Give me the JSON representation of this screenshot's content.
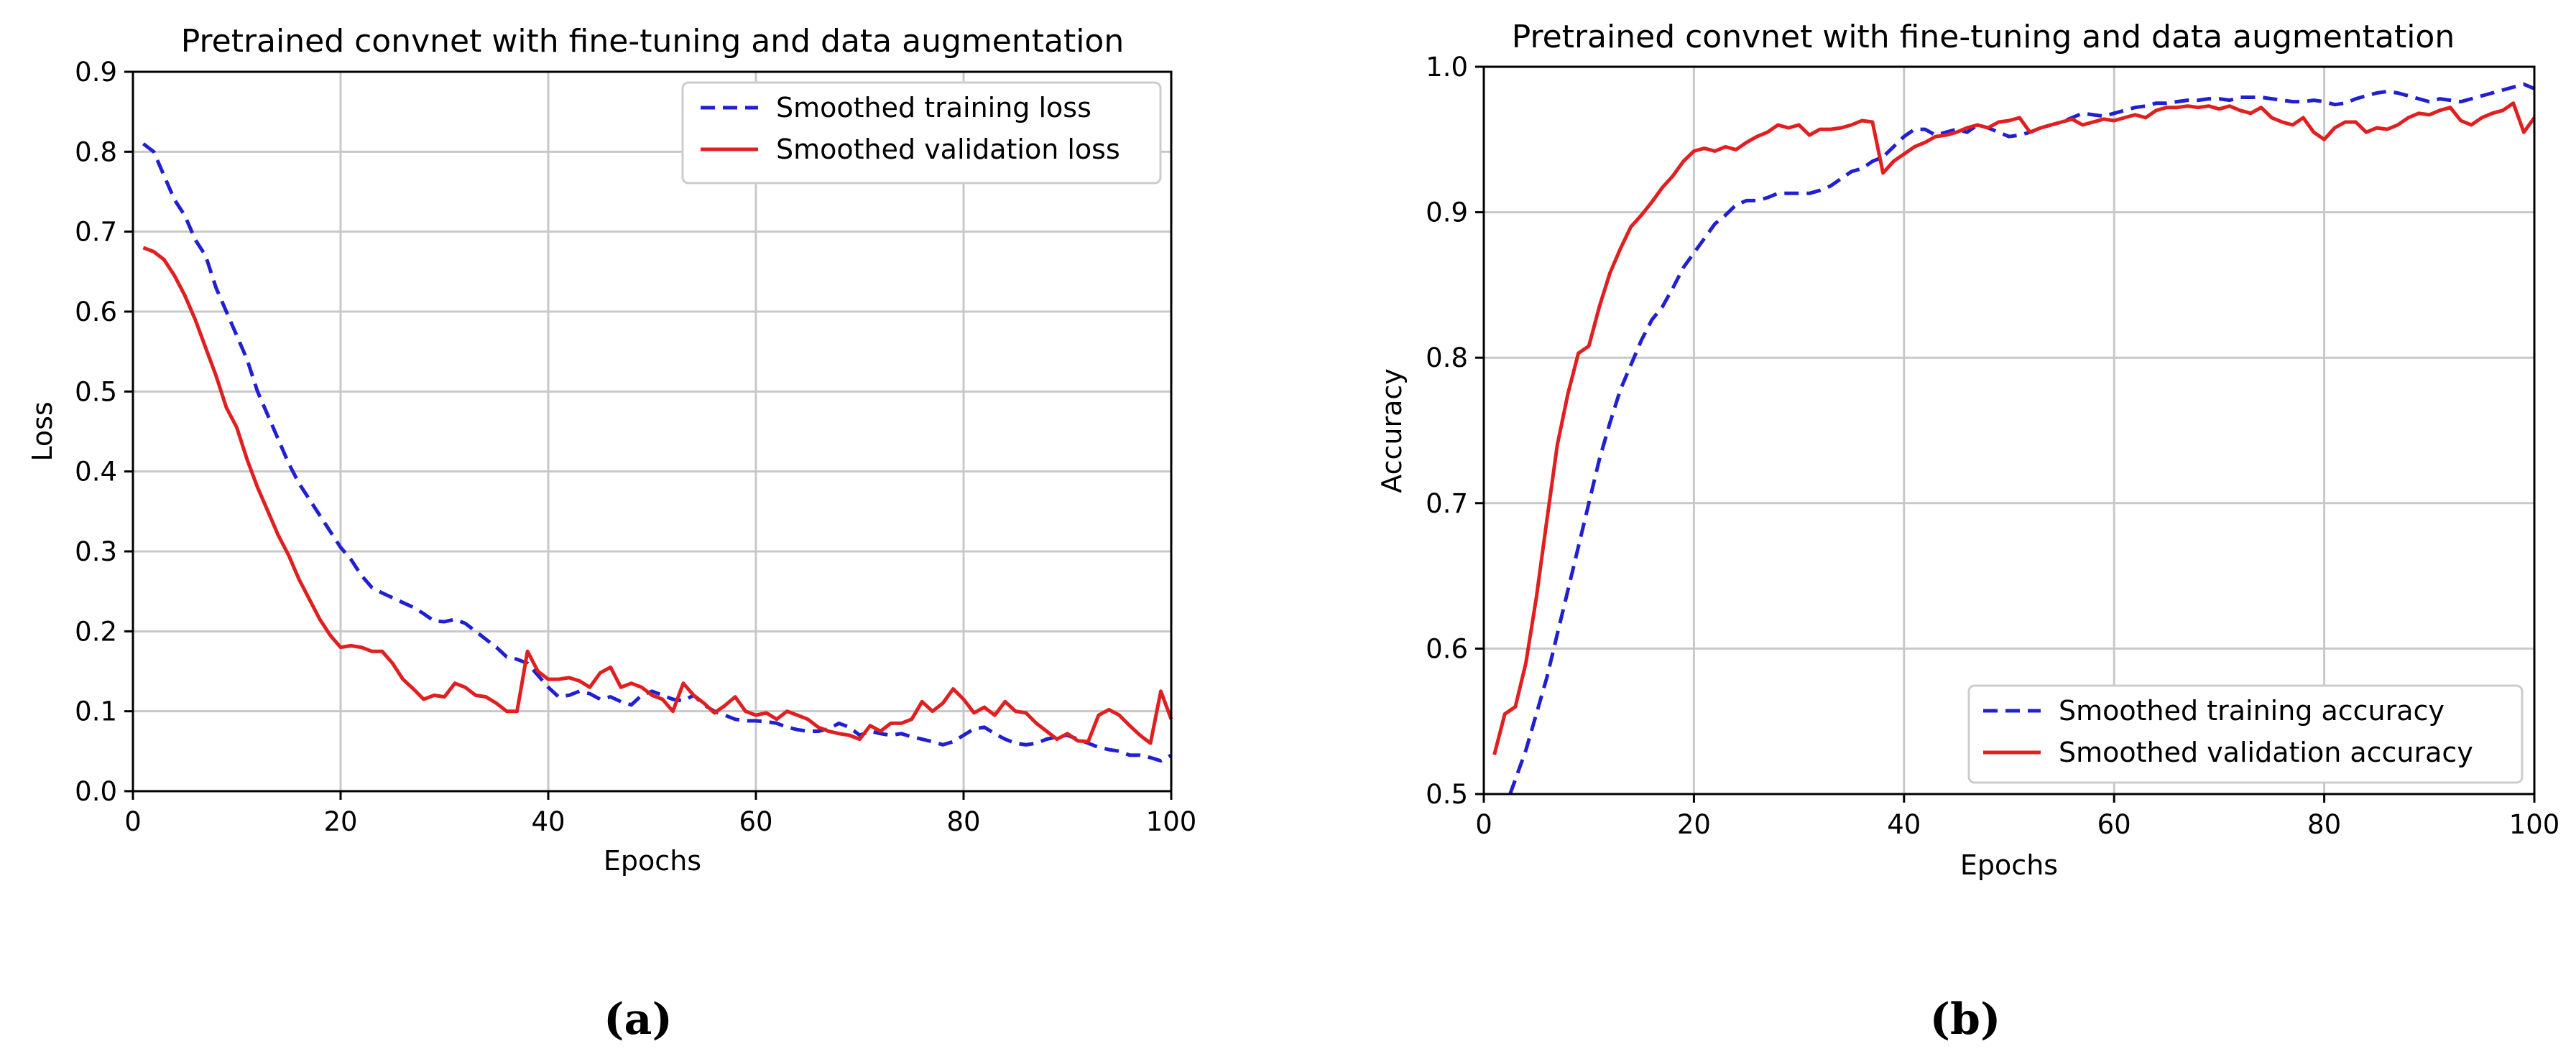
{
  "chart_data": [
    {
      "type": "line",
      "panel": "(a)",
      "title": "Pretrained convnet with fine-tuning and data augmentation",
      "xlabel": "Epochs",
      "ylabel": "Loss",
      "xlim": [
        0,
        100
      ],
      "ylim": [
        0,
        0.9
      ],
      "xticks": [
        0,
        20,
        40,
        60,
        80,
        100
      ],
      "yticks": [
        0.0,
        0.1,
        0.2,
        0.3,
        0.4,
        0.5,
        0.6,
        0.7,
        0.8,
        0.9
      ],
      "grid": true,
      "legend_position": "top-right",
      "series": [
        {
          "name": "Smoothed training loss",
          "color": "#2020d0",
          "style": "dashed",
          "x": [
            1,
            2,
            3,
            4,
            5,
            6,
            7,
            8,
            9,
            10,
            11,
            12,
            13,
            14,
            15,
            16,
            17,
            18,
            19,
            20,
            21,
            22,
            23,
            24,
            25,
            26,
            27,
            28,
            29,
            30,
            31,
            32,
            33,
            34,
            35,
            36,
            37,
            38,
            39,
            40,
            41,
            42,
            43,
            44,
            45,
            46,
            47,
            48,
            49,
            50,
            51,
            52,
            53,
            54,
            55,
            56,
            57,
            58,
            59,
            60,
            61,
            62,
            63,
            64,
            65,
            66,
            67,
            68,
            69,
            70,
            71,
            72,
            73,
            74,
            75,
            76,
            77,
            78,
            79,
            80,
            81,
            82,
            83,
            84,
            85,
            86,
            87,
            88,
            89,
            90,
            91,
            92,
            93,
            94,
            95,
            96,
            97,
            98,
            99,
            100
          ],
          "y": [
            0.81,
            0.8,
            0.77,
            0.74,
            0.72,
            0.69,
            0.67,
            0.63,
            0.6,
            0.57,
            0.54,
            0.5,
            0.47,
            0.44,
            0.41,
            0.385,
            0.365,
            0.345,
            0.325,
            0.305,
            0.29,
            0.27,
            0.255,
            0.248,
            0.242,
            0.236,
            0.23,
            0.222,
            0.213,
            0.212,
            0.215,
            0.21,
            0.2,
            0.19,
            0.18,
            0.168,
            0.165,
            0.16,
            0.145,
            0.13,
            0.118,
            0.12,
            0.125,
            0.122,
            0.115,
            0.118,
            0.112,
            0.108,
            0.12,
            0.125,
            0.12,
            0.115,
            0.113,
            0.12,
            0.108,
            0.1,
            0.095,
            0.09,
            0.088,
            0.088,
            0.087,
            0.085,
            0.08,
            0.077,
            0.075,
            0.075,
            0.078,
            0.085,
            0.08,
            0.07,
            0.075,
            0.072,
            0.07,
            0.072,
            0.068,
            0.065,
            0.062,
            0.058,
            0.062,
            0.07,
            0.078,
            0.08,
            0.072,
            0.065,
            0.06,
            0.058,
            0.06,
            0.065,
            0.068,
            0.07,
            0.065,
            0.06,
            0.055,
            0.052,
            0.05,
            0.045,
            0.045,
            0.042,
            0.038,
            0.045
          ]
        },
        {
          "name": "Smoothed validation loss",
          "color": "#e02020",
          "style": "solid",
          "x": [
            1,
            2,
            3,
            4,
            5,
            6,
            7,
            8,
            9,
            10,
            11,
            12,
            13,
            14,
            15,
            16,
            17,
            18,
            19,
            20,
            21,
            22,
            23,
            24,
            25,
            26,
            27,
            28,
            29,
            30,
            31,
            32,
            33,
            34,
            35,
            36,
            37,
            38,
            39,
            40,
            41,
            42,
            43,
            44,
            45,
            46,
            47,
            48,
            49,
            50,
            51,
            52,
            53,
            54,
            55,
            56,
            57,
            58,
            59,
            60,
            61,
            62,
            63,
            64,
            65,
            66,
            67,
            68,
            69,
            70,
            71,
            72,
            73,
            74,
            75,
            76,
            77,
            78,
            79,
            80,
            81,
            82,
            83,
            84,
            85,
            86,
            87,
            88,
            89,
            90,
            91,
            92,
            93,
            94,
            95,
            96,
            97,
            98,
            99,
            100
          ],
          "y": [
            0.68,
            0.675,
            0.665,
            0.645,
            0.62,
            0.59,
            0.555,
            0.52,
            0.48,
            0.455,
            0.415,
            0.38,
            0.35,
            0.32,
            0.295,
            0.265,
            0.24,
            0.215,
            0.195,
            0.18,
            0.182,
            0.18,
            0.175,
            0.175,
            0.16,
            0.14,
            0.128,
            0.115,
            0.12,
            0.118,
            0.135,
            0.13,
            0.12,
            0.118,
            0.11,
            0.1,
            0.1,
            0.175,
            0.15,
            0.14,
            0.14,
            0.142,
            0.138,
            0.13,
            0.148,
            0.155,
            0.13,
            0.135,
            0.13,
            0.12,
            0.115,
            0.1,
            0.135,
            0.12,
            0.11,
            0.098,
            0.107,
            0.118,
            0.1,
            0.095,
            0.098,
            0.09,
            0.1,
            0.095,
            0.09,
            0.08,
            0.075,
            0.072,
            0.07,
            0.065,
            0.082,
            0.075,
            0.085,
            0.085,
            0.09,
            0.112,
            0.1,
            0.11,
            0.128,
            0.115,
            0.098,
            0.105,
            0.095,
            0.112,
            0.1,
            0.098,
            0.085,
            0.075,
            0.065,
            0.072,
            0.063,
            0.062,
            0.095,
            0.102,
            0.095,
            0.082,
            0.07,
            0.06,
            0.125,
            0.09
          ]
        }
      ]
    },
    {
      "type": "line",
      "panel": "(b)",
      "title": "Pretrained convnet with fine-tuning and data augmentation",
      "xlabel": "Epochs",
      "ylabel": "Accuracy",
      "xlim": [
        0,
        100
      ],
      "ylim": [
        0.5,
        1.0
      ],
      "xticks": [
        0,
        20,
        40,
        60,
        80,
        100
      ],
      "yticks": [
        0.5,
        0.6,
        0.7,
        0.8,
        0.9,
        1.0
      ],
      "grid": true,
      "legend_position": "bottom-right",
      "series": [
        {
          "name": "Smoothed training accuracy",
          "color": "#2020d0",
          "style": "dashed",
          "x": [
            2.5,
            3,
            4,
            5,
            6,
            7,
            8,
            9,
            10,
            11,
            12,
            13,
            14,
            15,
            16,
            17,
            18,
            19,
            20,
            21,
            22,
            23,
            24,
            25,
            26,
            27,
            28,
            29,
            30,
            31,
            32,
            33,
            34,
            35,
            36,
            37,
            38,
            39,
            40,
            41,
            42,
            43,
            44,
            45,
            46,
            47,
            48,
            49,
            50,
            51,
            52,
            53,
            54,
            55,
            56,
            57,
            58,
            59,
            60,
            61,
            62,
            63,
            64,
            65,
            66,
            67,
            68,
            69,
            70,
            71,
            72,
            73,
            74,
            75,
            76,
            77,
            78,
            79,
            80,
            81,
            82,
            83,
            84,
            85,
            86,
            87,
            88,
            89,
            90,
            91,
            92,
            93,
            94,
            95,
            96,
            97,
            98,
            99,
            100
          ],
          "y": [
            0.5,
            0.51,
            0.53,
            0.555,
            0.58,
            0.61,
            0.64,
            0.67,
            0.7,
            0.73,
            0.755,
            0.778,
            0.795,
            0.812,
            0.826,
            0.835,
            0.848,
            0.862,
            0.872,
            0.882,
            0.892,
            0.898,
            0.905,
            0.908,
            0.908,
            0.91,
            0.913,
            0.913,
            0.913,
            0.913,
            0.915,
            0.918,
            0.923,
            0.928,
            0.93,
            0.935,
            0.938,
            0.945,
            0.952,
            0.957,
            0.957,
            0.953,
            0.955,
            0.957,
            0.955,
            0.96,
            0.958,
            0.955,
            0.952,
            0.953,
            0.955,
            0.958,
            0.96,
            0.962,
            0.965,
            0.968,
            0.967,
            0.966,
            0.968,
            0.97,
            0.972,
            0.973,
            0.975,
            0.975,
            0.976,
            0.977,
            0.977,
            0.978,
            0.978,
            0.977,
            0.979,
            0.979,
            0.979,
            0.978,
            0.977,
            0.976,
            0.976,
            0.977,
            0.976,
            0.974,
            0.975,
            0.978,
            0.98,
            0.982,
            0.983,
            0.982,
            0.98,
            0.978,
            0.976,
            0.978,
            0.977,
            0.976,
            0.978,
            0.98,
            0.982,
            0.984,
            0.986,
            0.988,
            0.985
          ]
        },
        {
          "name": "Smoothed validation accuracy",
          "color": "#e02020",
          "style": "solid",
          "x": [
            1,
            2,
            3,
            4,
            5,
            6,
            7,
            8,
            9,
            10,
            11,
            12,
            13,
            14,
            15,
            16,
            17,
            18,
            19,
            20,
            21,
            22,
            23,
            24,
            25,
            26,
            27,
            28,
            29,
            30,
            31,
            32,
            33,
            34,
            35,
            36,
            37,
            38,
            39,
            40,
            41,
            42,
            43,
            44,
            45,
            46,
            47,
            48,
            49,
            50,
            51,
            52,
            53,
            54,
            55,
            56,
            57,
            58,
            59,
            60,
            61,
            62,
            63,
            64,
            65,
            66,
            67,
            68,
            69,
            70,
            71,
            72,
            73,
            74,
            75,
            76,
            77,
            78,
            79,
            80,
            81,
            82,
            83,
            84,
            85,
            86,
            87,
            88,
            89,
            90,
            91,
            92,
            93,
            94,
            95,
            96,
            97,
            98,
            99,
            100
          ],
          "y": [
            0.527,
            0.555,
            0.56,
            0.59,
            0.635,
            0.688,
            0.74,
            0.775,
            0.803,
            0.808,
            0.835,
            0.858,
            0.875,
            0.89,
            0.898,
            0.907,
            0.917,
            0.925,
            0.935,
            0.942,
            0.944,
            0.942,
            0.945,
            0.943,
            0.948,
            0.952,
            0.955,
            0.96,
            0.958,
            0.96,
            0.953,
            0.957,
            0.957,
            0.958,
            0.96,
            0.963,
            0.962,
            0.927,
            0.935,
            0.94,
            0.945,
            0.948,
            0.952,
            0.953,
            0.955,
            0.958,
            0.96,
            0.958,
            0.962,
            0.963,
            0.965,
            0.955,
            0.958,
            0.96,
            0.962,
            0.964,
            0.96,
            0.962,
            0.964,
            0.963,
            0.965,
            0.967,
            0.965,
            0.97,
            0.972,
            0.972,
            0.973,
            0.972,
            0.973,
            0.971,
            0.973,
            0.97,
            0.968,
            0.972,
            0.965,
            0.962,
            0.96,
            0.965,
            0.955,
            0.95,
            0.958,
            0.962,
            0.962,
            0.955,
            0.958,
            0.957,
            0.96,
            0.965,
            0.968,
            0.967,
            0.97,
            0.972,
            0.963,
            0.96,
            0.965,
            0.968,
            0.97,
            0.975,
            0.955,
            0.965
          ]
        }
      ]
    }
  ]
}
